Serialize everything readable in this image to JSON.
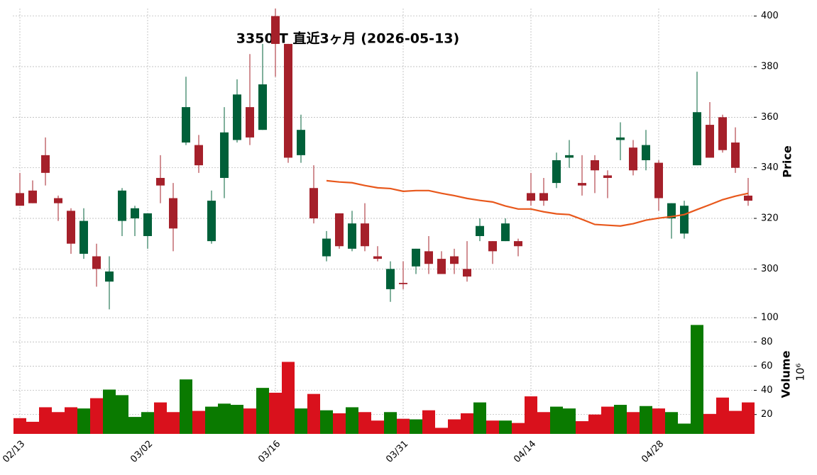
{
  "chart_data": {
    "type": "candlestick",
    "title": "3350.T 直近3ヶ月 (2026-05-13)",
    "categories": [
      "02/13",
      null,
      null,
      null,
      null,
      null,
      null,
      null,
      null,
      null,
      "03/02",
      null,
      null,
      null,
      null,
      null,
      null,
      null,
      null,
      null,
      "03/16",
      null,
      null,
      null,
      null,
      null,
      null,
      null,
      null,
      null,
      "03/31",
      null,
      null,
      null,
      null,
      null,
      null,
      null,
      null,
      null,
      "04/14",
      null,
      null,
      null,
      null,
      null,
      null,
      null,
      null,
      null,
      "04/28",
      null,
      null,
      null,
      null,
      null,
      null,
      null
    ],
    "open": [
      330,
      331,
      345,
      328,
      323,
      306,
      305,
      295,
      319,
      320,
      313,
      336,
      328,
      350,
      349,
      311,
      336,
      351,
      364,
      355,
      400,
      389,
      345,
      332,
      305,
      322,
      308,
      318,
      305,
      292,
      294.5,
      301,
      307,
      304,
      305,
      300,
      313,
      311,
      311,
      311,
      330,
      330,
      334,
      344,
      334,
      343,
      337,
      351,
      348,
      343,
      342,
      320,
      314,
      341,
      357,
      360,
      350,
      329
    ],
    "high": [
      338,
      335,
      352,
      329,
      324,
      324,
      310,
      305,
      332,
      325,
      322,
      345,
      334,
      376,
      353,
      331,
      364,
      375,
      385,
      389,
      403,
      389,
      361,
      341,
      315,
      322,
      323,
      326,
      309,
      303,
      303,
      308,
      313,
      307,
      308,
      311,
      320,
      311,
      320,
      312,
      338,
      336,
      346,
      351,
      345,
      345,
      339,
      358,
      351,
      355,
      343,
      326,
      327,
      378,
      366,
      361,
      356,
      336
    ],
    "low": [
      325,
      326,
      333,
      319,
      306,
      304,
      293,
      284,
      313,
      313,
      308,
      326,
      307,
      349,
      338,
      310,
      328,
      350,
      349,
      355,
      376,
      342,
      342,
      318,
      303,
      308,
      307,
      307,
      303,
      287,
      292,
      298,
      298,
      298,
      298,
      295,
      311,
      302,
      311,
      305,
      325,
      325,
      332,
      340,
      329,
      330,
      328,
      343,
      337,
      339,
      323,
      312,
      312,
      341,
      344,
      346,
      338,
      325
    ],
    "close": [
      325,
      326,
      338,
      326,
      310,
      319,
      300,
      299,
      331,
      324,
      322,
      333,
      316,
      364,
      341,
      327,
      354,
      369,
      352,
      373,
      389,
      344,
      355,
      320,
      312,
      309,
      318,
      309,
      304,
      300,
      294,
      308,
      302,
      298,
      302,
      297,
      317,
      307,
      318,
      309,
      327,
      327,
      343,
      345,
      333,
      339,
      336,
      352,
      339,
      349,
      328,
      326,
      325,
      362,
      344,
      347,
      340,
      327
    ],
    "ylim": [
      283,
      403
    ],
    "yticks": [
      300,
      320,
      340,
      360,
      380,
      400
    ],
    "ylabel": "Price",
    "up_color": "#006039",
    "down_color": "#a5202a",
    "line": {
      "color": "#e8581c",
      "values": [
        null,
        null,
        null,
        null,
        null,
        null,
        null,
        null,
        null,
        null,
        null,
        null,
        null,
        null,
        null,
        null,
        null,
        null,
        null,
        null,
        null,
        null,
        null,
        null,
        334.9,
        334.4,
        334.1,
        333,
        332.1,
        331.8,
        330.7,
        331,
        331,
        329.9,
        329,
        327.9,
        327.1,
        326.5,
        324.9,
        323.7,
        323.7,
        322.6,
        321.8,
        321.5,
        319.6,
        317.6,
        317.3,
        317,
        317.9,
        319.3,
        320.1,
        320.7,
        321.5,
        323.5,
        325.4,
        327.4,
        328.8,
        329.9
      ]
    },
    "volume": {
      "values": [
        17,
        14,
        26,
        22,
        26,
        25,
        33.5,
        40.6,
        36,
        18,
        22,
        30,
        22,
        49,
        23,
        26.5,
        29,
        28,
        25,
        42,
        38,
        63.5,
        25,
        37,
        23.5,
        21,
        26,
        22,
        15,
        22,
        16.5,
        16,
        23.5,
        9,
        16,
        21,
        30,
        15,
        15,
        13,
        35,
        22,
        26.5,
        25,
        14.5,
        20,
        26.5,
        28,
        22,
        27,
        25,
        22,
        12.5,
        94,
        20.5,
        34,
        23,
        30
      ],
      "ylim": [
        4,
        103
      ],
      "yticks": [
        20,
        40,
        60,
        80,
        100
      ],
      "ylabel": "Volume",
      "scale_label": "10⁶",
      "up_color": "#0a7a00",
      "down_color": "#d9111c"
    },
    "grid": true
  }
}
